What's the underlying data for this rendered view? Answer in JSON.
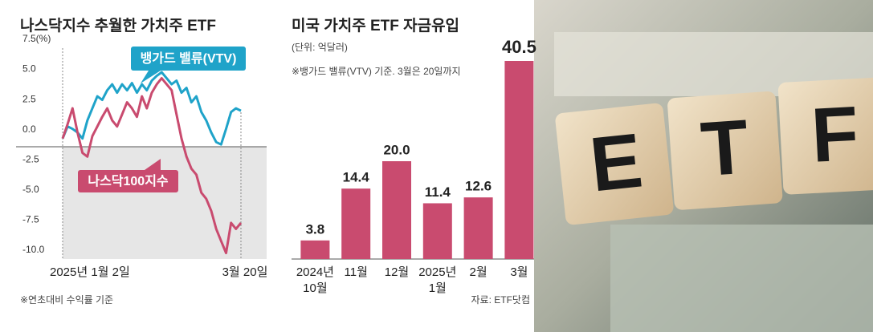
{
  "chart_data": [
    {
      "type": "line",
      "title": "나스닥지수 추월한 가치주 ETF",
      "categories": [
        "2025년 1월 2일",
        null,
        null,
        null,
        null,
        null,
        null,
        null,
        null,
        null,
        null,
        null,
        null,
        null,
        null,
        null,
        null,
        null,
        null,
        null,
        null,
        null,
        null,
        null,
        null,
        null,
        null,
        null,
        null,
        null,
        null,
        null,
        null,
        null,
        null,
        null,
        "3월 20일"
      ],
      "series": [
        {
          "name": "뱅가드 밸류(VTV)",
          "color": "#1fa3c9",
          "values": [
            0,
            1,
            0.8,
            0.5,
            0,
            1.5,
            2.5,
            3.5,
            3.2,
            4,
            4.5,
            3.8,
            4.5,
            4,
            4.6,
            3.8,
            4.5,
            4,
            4.8,
            5.2,
            5.5,
            5,
            4.5,
            4.8,
            3.8,
            4.2,
            3,
            3.5,
            2.2,
            1.5,
            0.5,
            -0.3,
            -0.5,
            0.8,
            2.2,
            2.5,
            2.3
          ]
        },
        {
          "name": "나스닥100지수",
          "color": "#c94b6f",
          "values": [
            0,
            1.2,
            2.5,
            0.5,
            -1.2,
            -1.5,
            0.2,
            1,
            1.8,
            2.5,
            1.5,
            1,
            2,
            3,
            2.5,
            1.8,
            3.5,
            2.5,
            3.8,
            4.5,
            5,
            4.5,
            4,
            2,
            0,
            -1.5,
            -2.5,
            -3,
            -4.5,
            -5,
            -6,
            -7.5,
            -8.5,
            -9.5,
            -7,
            -7.5,
            -7
          ]
        }
      ],
      "ylim": [
        -10,
        7.5
      ],
      "yticks": [
        {
          "value": -10,
          "label": "-10.0"
        },
        -7.5,
        {
          "value": -5,
          "label": "-5.0"
        },
        -2.5,
        {
          "value": 0,
          "label": "0.0"
        },
        2.5,
        {
          "value": 5,
          "label": "5.0"
        },
        {
          "value": 7.5,
          "label": "7.5(%)"
        }
      ],
      "grid": false,
      "note": "※연초대비 수익률 기준"
    },
    {
      "type": "bar",
      "title": "미국 가치주 ETF 자금유입",
      "subtitle": "(단위: 억달러)",
      "note": "※뱅가드 밸류(VTV) 기준. 3월은 20일까지",
      "categories": [
        "2024년\n10월",
        "11월",
        "12월",
        "2025년\n1월",
        "2월",
        "3월"
      ],
      "values": [
        3.8,
        14.4,
        20.0,
        11.4,
        12.6,
        40.5
      ],
      "value_labels": [
        "3.8",
        "14.4",
        "20.0",
        "11.4",
        "12.6",
        "40.5"
      ],
      "color": "#c94b6f",
      "source": "자료: ETF닷컴"
    }
  ],
  "photo": {
    "blocks": [
      "E",
      "T",
      "F"
    ]
  }
}
